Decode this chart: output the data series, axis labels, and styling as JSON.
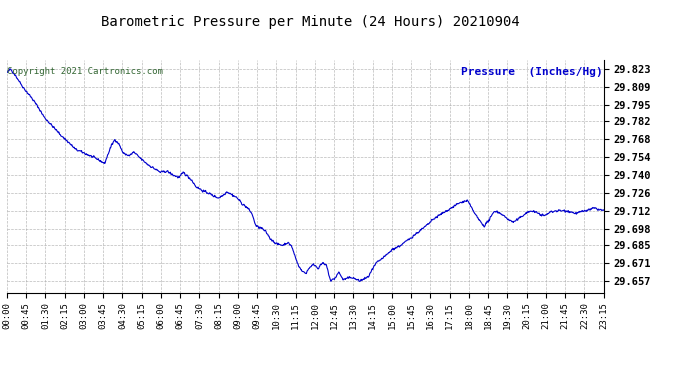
{
  "title": "Barometric Pressure per Minute (24 Hours) 20210904",
  "ylabel": "Pressure  (Inches/Hg)",
  "copyright_text": "Copyright 2021 Cartronics.com",
  "line_color": "#0000cc",
  "background_color": "#ffffff",
  "grid_color": "#aaaaaa",
  "title_color": "#000000",
  "ylabel_color": "#0000cc",
  "copyright_color": "#336633",
  "yticks": [
    29.657,
    29.671,
    29.685,
    29.698,
    29.712,
    29.726,
    29.74,
    29.754,
    29.768,
    29.782,
    29.795,
    29.809,
    29.823
  ],
  "ylim": [
    29.648,
    29.83
  ],
  "xtick_labels": [
    "00:00",
    "00:45",
    "01:30",
    "02:15",
    "03:00",
    "03:45",
    "04:30",
    "05:15",
    "06:00",
    "06:45",
    "07:30",
    "08:15",
    "09:00",
    "09:45",
    "10:30",
    "11:15",
    "12:00",
    "12:45",
    "13:30",
    "14:15",
    "15:00",
    "15:45",
    "16:30",
    "17:15",
    "18:00",
    "18:45",
    "19:30",
    "20:15",
    "21:00",
    "21:45",
    "22:30",
    "23:15"
  ],
  "num_points": 1440,
  "pressure_keypoints": [
    [
      0,
      29.82
    ],
    [
      8,
      29.823
    ],
    [
      20,
      29.818
    ],
    [
      40,
      29.808
    ],
    [
      60,
      29.8
    ],
    [
      75,
      29.793
    ],
    [
      90,
      29.785
    ],
    [
      110,
      29.778
    ],
    [
      130,
      29.771
    ],
    [
      150,
      29.765
    ],
    [
      165,
      29.76
    ],
    [
      180,
      29.758
    ],
    [
      200,
      29.755
    ],
    [
      220,
      29.752
    ],
    [
      235,
      29.749
    ],
    [
      250,
      29.762
    ],
    [
      260,
      29.768
    ],
    [
      270,
      29.764
    ],
    [
      280,
      29.757
    ],
    [
      295,
      29.755
    ],
    [
      305,
      29.758
    ],
    [
      315,
      29.755
    ],
    [
      325,
      29.752
    ],
    [
      340,
      29.748
    ],
    [
      355,
      29.745
    ],
    [
      370,
      29.742
    ],
    [
      385,
      29.743
    ],
    [
      400,
      29.74
    ],
    [
      415,
      29.738
    ],
    [
      425,
      29.742
    ],
    [
      435,
      29.739
    ],
    [
      445,
      29.736
    ],
    [
      455,
      29.731
    ],
    [
      465,
      29.729
    ],
    [
      475,
      29.727
    ],
    [
      485,
      29.726
    ],
    [
      495,
      29.724
    ],
    [
      510,
      29.722
    ],
    [
      520,
      29.724
    ],
    [
      530,
      29.727
    ],
    [
      545,
      29.724
    ],
    [
      555,
      29.722
    ],
    [
      565,
      29.718
    ],
    [
      580,
      29.714
    ],
    [
      590,
      29.71
    ],
    [
      600,
      29.7
    ],
    [
      615,
      29.698
    ],
    [
      625,
      29.695
    ],
    [
      635,
      29.69
    ],
    [
      650,
      29.686
    ],
    [
      665,
      29.685
    ],
    [
      675,
      29.687
    ],
    [
      685,
      29.685
    ],
    [
      700,
      29.671
    ],
    [
      710,
      29.665
    ],
    [
      720,
      29.663
    ],
    [
      730,
      29.668
    ],
    [
      740,
      29.67
    ],
    [
      750,
      29.667
    ],
    [
      760,
      29.671
    ],
    [
      770,
      29.669
    ],
    [
      780,
      29.657
    ],
    [
      790,
      29.659
    ],
    [
      800,
      29.664
    ],
    [
      810,
      29.658
    ],
    [
      830,
      29.66
    ],
    [
      850,
      29.657
    ],
    [
      870,
      29.66
    ],
    [
      890,
      29.671
    ],
    [
      910,
      29.676
    ],
    [
      930,
      29.682
    ],
    [
      950,
      29.685
    ],
    [
      970,
      29.69
    ],
    [
      990,
      29.695
    ],
    [
      1010,
      29.7
    ],
    [
      1030,
      29.706
    ],
    [
      1060,
      29.712
    ],
    [
      1090,
      29.718
    ],
    [
      1110,
      29.72
    ],
    [
      1120,
      29.714
    ],
    [
      1135,
      29.706
    ],
    [
      1150,
      29.7
    ],
    [
      1165,
      29.706
    ],
    [
      1175,
      29.712
    ],
    [
      1190,
      29.71
    ],
    [
      1205,
      29.706
    ],
    [
      1220,
      29.703
    ],
    [
      1235,
      29.706
    ],
    [
      1250,
      29.71
    ],
    [
      1265,
      29.712
    ],
    [
      1280,
      29.71
    ],
    [
      1295,
      29.708
    ],
    [
      1310,
      29.711
    ],
    [
      1325,
      29.712
    ],
    [
      1350,
      29.712
    ],
    [
      1370,
      29.71
    ],
    [
      1395,
      29.712
    ],
    [
      1415,
      29.714
    ],
    [
      1439,
      29.712
    ]
  ]
}
